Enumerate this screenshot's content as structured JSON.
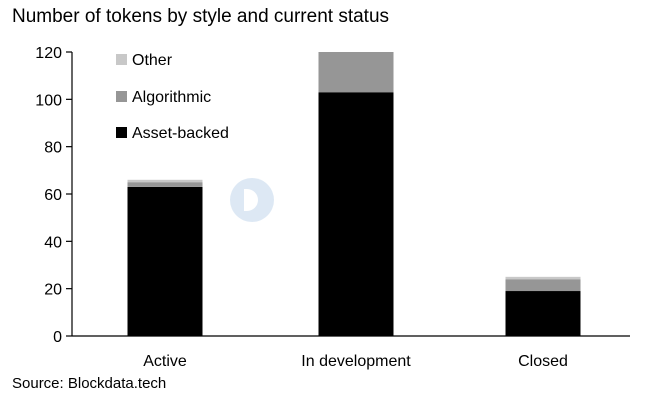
{
  "title": "Number of tokens by style and current status",
  "source": "Source: Blockdata.tech",
  "colors": {
    "asset_backed": "#000000",
    "algorithmic": "#969696",
    "other": "#c8c8c8",
    "axis": "#000000"
  },
  "chart_data": {
    "type": "bar",
    "stacked": true,
    "categories": [
      "Active",
      "In development",
      "Closed"
    ],
    "series": [
      {
        "name": "Asset-backed",
        "values": [
          63,
          103,
          19
        ]
      },
      {
        "name": "Algorithmic",
        "values": [
          2,
          17,
          5
        ]
      },
      {
        "name": "Other",
        "values": [
          1,
          0,
          1
        ]
      }
    ],
    "title": "Number of tokens by style and current status",
    "xlabel": "",
    "ylabel": "",
    "ylim": [
      0,
      120
    ],
    "yticks": [
      0,
      20,
      40,
      60,
      80,
      100,
      120
    ],
    "grid": false,
    "legend": "top-left, inside plot, reversed order"
  }
}
